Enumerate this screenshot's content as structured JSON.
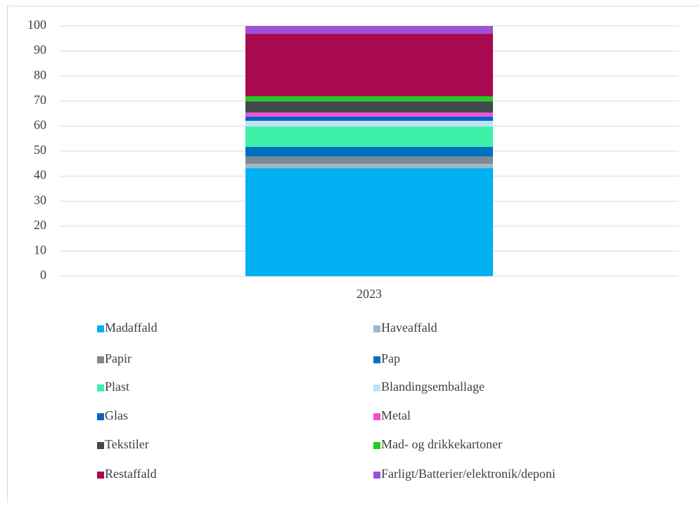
{
  "chart_data": {
    "type": "stacked_bar",
    "categories": [
      "2023"
    ],
    "series": [
      {
        "name": "Madaffald",
        "color": "#00b0f0",
        "values": [
          43.2
        ]
      },
      {
        "name": "Haveaffald",
        "color": "#9fb7cd",
        "values": [
          1.7
        ]
      },
      {
        "name": "Papir",
        "color": "#7f8a90",
        "values": [
          2.9
        ]
      },
      {
        "name": "Pap",
        "color": "#0070c0",
        "values": [
          3.9
        ]
      },
      {
        "name": "Plast",
        "color": "#3ef0a8",
        "values": [
          8.1
        ]
      },
      {
        "name": "Blandingsemballage",
        "color": "#bde3f7",
        "values": [
          2.3
        ]
      },
      {
        "name": "Glas",
        "color": "#0563c1",
        "values": [
          1.7
        ]
      },
      {
        "name": "Metal",
        "color": "#f050d8",
        "values": [
          1.6
        ]
      },
      {
        "name": "Tekstiler",
        "color": "#404a4a",
        "values": [
          4.5
        ]
      },
      {
        "name": "Mad- og drikkekartoner",
        "color": "#22cc22",
        "values": [
          2.0
        ]
      },
      {
        "name": "Restaffald",
        "color": "#a80a50",
        "values": [
          25.0
        ]
      },
      {
        "name": "Farligt/Batterier/elektronik/deponi",
        "color": "#a050d8",
        "values": [
          3.1
        ]
      }
    ],
    "ylim": [
      0,
      100
    ],
    "yticks": [
      0,
      10,
      20,
      30,
      40,
      50,
      60,
      70,
      80,
      90,
      100
    ],
    "grid": true,
    "legend": "bottom"
  }
}
